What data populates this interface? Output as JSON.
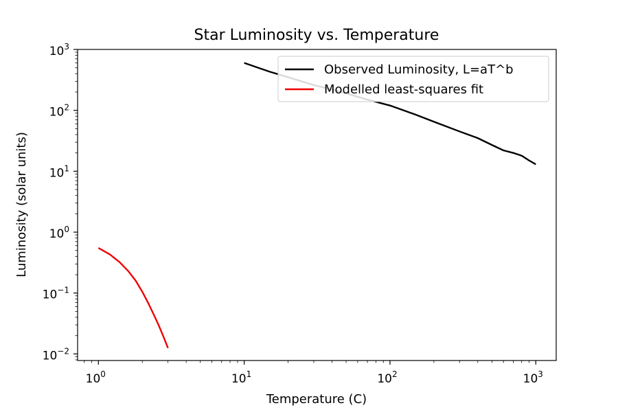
{
  "chart_data": {
    "type": "line",
    "title": "Star Luminosity vs. Temperature",
    "xlabel": "Temperature (C)",
    "ylabel": "Luminosity (solar units)",
    "xscale": "log",
    "yscale": "log",
    "xlim": [
      0.72,
      1380
    ],
    "ylim": [
      0.0078,
      1000
    ],
    "grid": false,
    "legend": "top-right",
    "x_ticks": [
      {
        "base": "10",
        "exp": "0",
        "value": 1
      },
      {
        "base": "10",
        "exp": "1",
        "value": 10
      },
      {
        "base": "10",
        "exp": "2",
        "value": 100
      },
      {
        "base": "10",
        "exp": "3",
        "value": 1000
      }
    ],
    "y_ticks": [
      {
        "base": "10",
        "exp": "−2",
        "value": 0.01
      },
      {
        "base": "10",
        "exp": "−1",
        "value": 0.1
      },
      {
        "base": "10",
        "exp": "0",
        "value": 1
      },
      {
        "base": "10",
        "exp": "1",
        "value": 10
      },
      {
        "base": "10",
        "exp": "2",
        "value": 100
      },
      {
        "base": "10",
        "exp": "3",
        "value": 1000
      }
    ],
    "series": [
      {
        "name": "Observed Luminosity, L=aT^b",
        "color": "#000000",
        "x": [
          10,
          15,
          20,
          30,
          40,
          50,
          70,
          100,
          150,
          200,
          300,
          400,
          500,
          600,
          700,
          800,
          900,
          1000
        ],
        "y": [
          600,
          430,
          350,
          260,
          220,
          190,
          150,
          120,
          85,
          65,
          45,
          35,
          27,
          22,
          20,
          18,
          15,
          13
        ]
      },
      {
        "name": "Modelled least-squares fit",
        "color": "#ee0000",
        "x": [
          1.0,
          1.2,
          1.4,
          1.6,
          1.8,
          2.0,
          2.2,
          2.4,
          2.6,
          2.8,
          3.0
        ],
        "y": [
          0.55,
          0.43,
          0.32,
          0.23,
          0.16,
          0.105,
          0.068,
          0.044,
          0.029,
          0.019,
          0.0125
        ]
      }
    ]
  }
}
